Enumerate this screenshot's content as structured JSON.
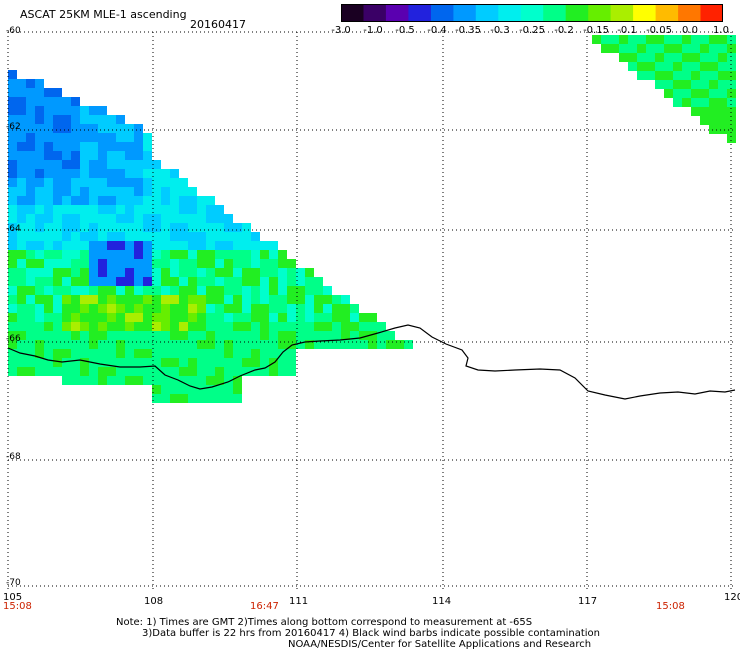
{
  "header": {
    "title": "ASCAT 25KM MLE-1 ascending",
    "date": "20160417"
  },
  "colorbar": {
    "colors": [
      "#1a0022",
      "#3a0066",
      "#5a00b0",
      "#2222dd",
      "#0066ee",
      "#0099ff",
      "#00ccff",
      "#00eeee",
      "#00ffcc",
      "#00ff88",
      "#22ee22",
      "#66ee00",
      "#aaee00",
      "#ffff00",
      "#ffbb00",
      "#ff7700",
      "#ff2200"
    ],
    "labels": [
      "-3.0",
      "-1.0",
      "-0.5",
      "-0.4",
      "-0.35",
      "-0.3",
      "-0.25",
      "-0.2",
      "-0.15",
      "-0.1",
      "-0.05",
      "0.0",
      "1.0"
    ]
  },
  "axes": {
    "lat_labels": [
      "-60",
      "-62",
      "-64",
      "-66",
      "-68",
      "-70"
    ],
    "lon_labels": [
      "105",
      "108",
      "111",
      "114",
      "117",
      "120"
    ],
    "time_labels": [
      "15:08",
      "16:47",
      "15:08"
    ]
  },
  "notes": {
    "line1": "Note: 1) Times are GMT 2)Times along bottom correspond to measurement at -65S",
    "line2": "3)Data buffer is 22 hrs from 20160417 4) Black wind barbs indicate possible contamination",
    "line3": "NOAA/NESDIS/Center for Satellite Applications and Research"
  }
}
